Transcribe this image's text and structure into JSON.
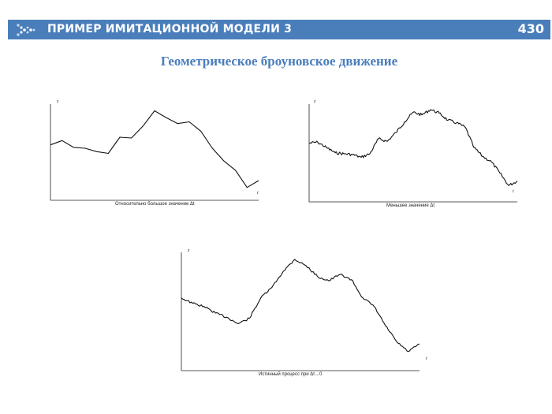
{
  "header": {
    "title": "ПРИМЕР ИМИТАЦИОННОЙ МОДЕЛИ 3",
    "slide_number": "430",
    "logo_icon": "arrow-dots-icon",
    "background_color": "#4a7ebb"
  },
  "subtitle": "Геометрическое броуновское движение",
  "plots": [
    {
      "y_label": "z",
      "x_label": "t",
      "caption": "Относительно большое значение Δt"
    },
    {
      "y_label": "z",
      "x_label": "t",
      "caption": "Меньшее значение Δt"
    },
    {
      "y_label": "z",
      "x_label": "t",
      "caption": "Истинный процесс при Δt→0"
    }
  ],
  "chart_data": [
    {
      "type": "line",
      "title": "",
      "xlabel": "t",
      "ylabel": "z",
      "series": [
        {
          "values": [
            5.4,
            5.9,
            5.1,
            5.0,
            4.6,
            4.4,
            6.3,
            6.2,
            7.6,
            9.4,
            8.6,
            7.9,
            8.1,
            7.0,
            5.0,
            3.5,
            2.4,
            0.4,
            1.2
          ]
        }
      ]
    },
    {
      "type": "line",
      "title": "",
      "xlabel": "t",
      "ylabel": "z",
      "series": [
        {
          "values": [
            5.4,
            5.5,
            4.9,
            4.3,
            4.2,
            4.1,
            3.8,
            4.2,
            5.9,
            5.6,
            6.6,
            7.8,
            8.9,
            8.6,
            9.2,
            8.8,
            8.0,
            7.7,
            7.2,
            4.9,
            3.9,
            3.3,
            2.0,
            0.6,
            1.1
          ]
        }
      ]
    },
    {
      "type": "line",
      "title": "",
      "xlabel": "t",
      "ylabel": "z",
      "series": [
        {
          "values": [
            5.6,
            5.1,
            4.8,
            4.2,
            3.8,
            3.2,
            3.7,
            5.6,
            6.6,
            8.1,
            9.2,
            8.6,
            7.6,
            7.2,
            7.8,
            7.3,
            5.6,
            4.8,
            3.0,
            1.5,
            0.6,
            1.3
          ]
        }
      ]
    }
  ]
}
